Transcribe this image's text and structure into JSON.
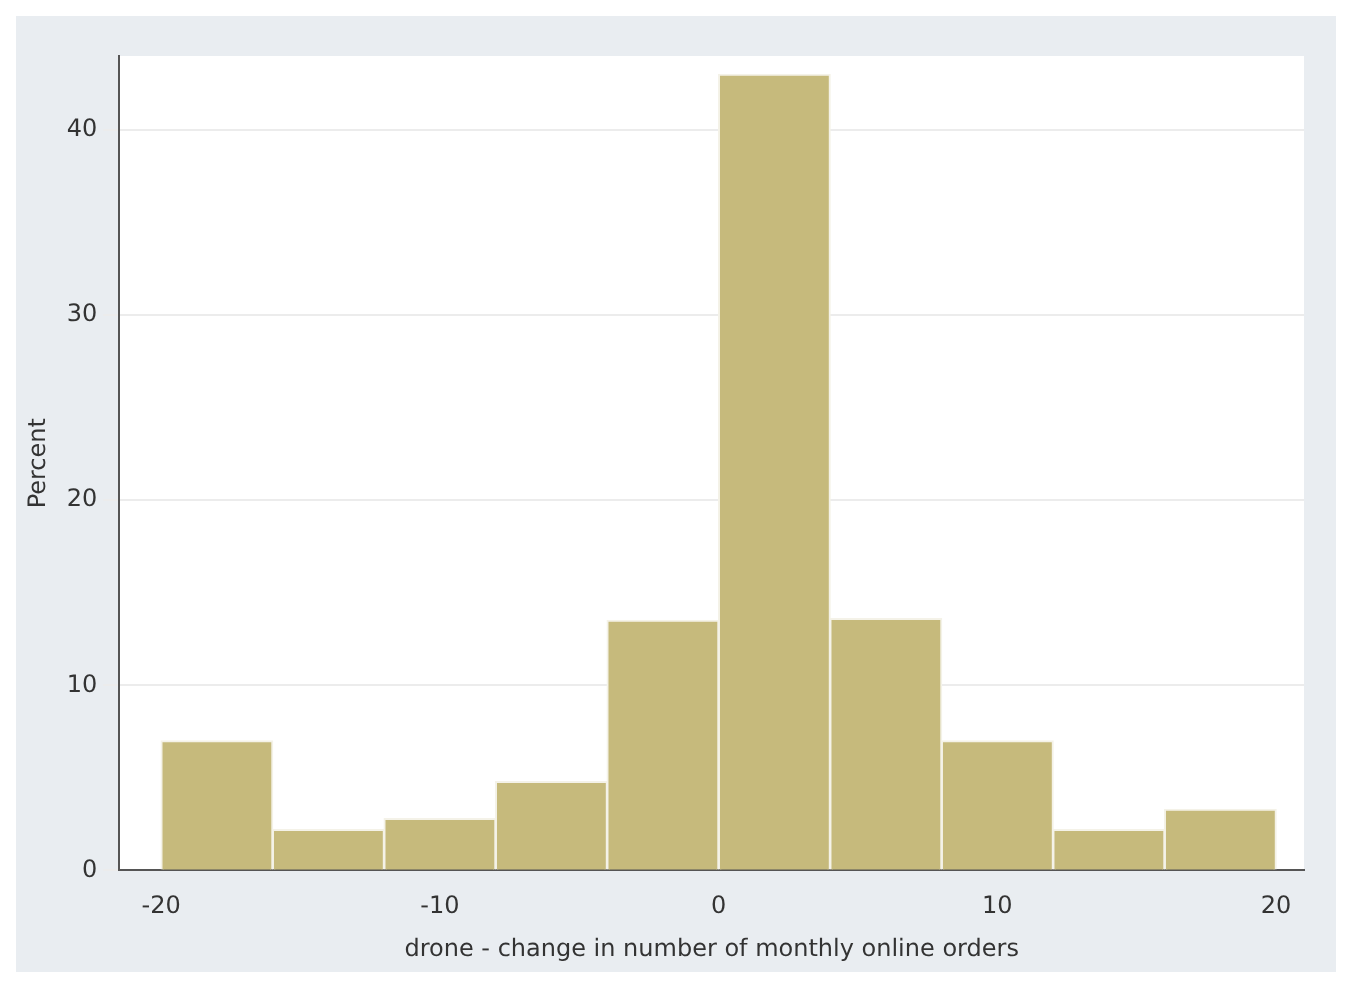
{
  "chart_data": {
    "type": "histogram",
    "xlabel": "drone - change in number of monthly online orders",
    "ylabel": "Percent",
    "bins": [
      -20,
      -16,
      -12,
      -8,
      -4,
      0,
      4,
      8,
      12,
      16,
      20
    ],
    "values": [
      7,
      2.2,
      2.8,
      4.8,
      13.5,
      43,
      13.6,
      7,
      2.2,
      3.3
    ],
    "color": "#c6ba7c",
    "xlim": [
      -21.5,
      21
    ],
    "xticks": [
      -20,
      -10,
      0,
      10,
      20
    ],
    "ylim": [
      0,
      44
    ],
    "yticks": [
      0,
      10,
      20,
      30,
      40
    ],
    "grid": "y",
    "legend": false
  }
}
